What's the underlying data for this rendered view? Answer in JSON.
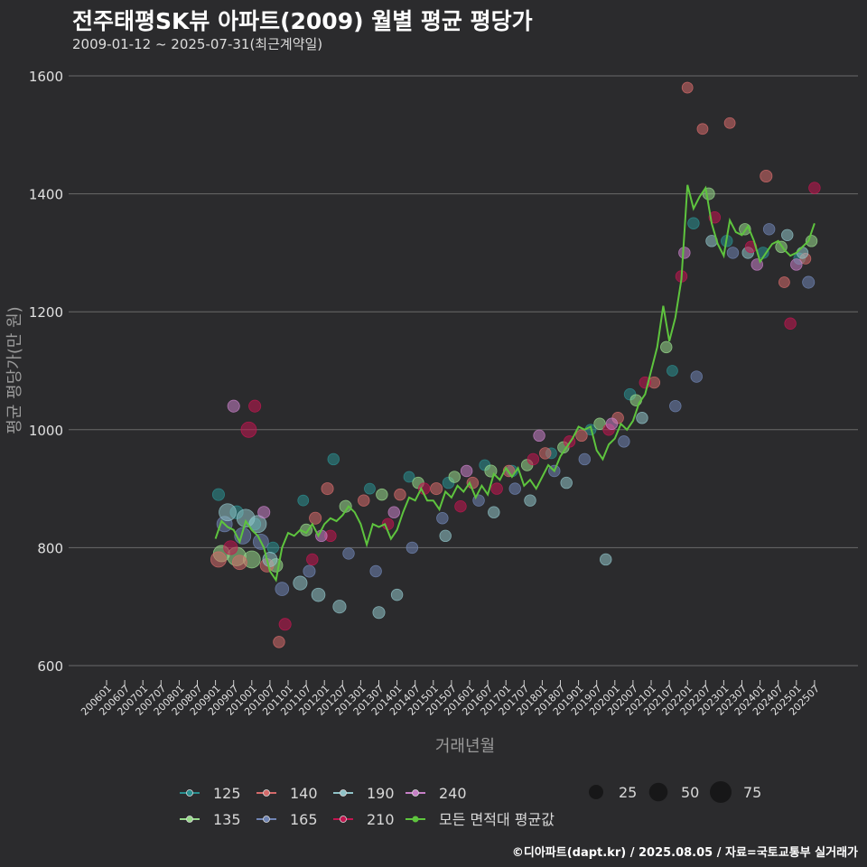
{
  "title": "전주태평SK뷰 아파트(2009) 월별 평균 평당가",
  "subtitle": "2009-01-12 ~ 2025-07-31(최근계약일)",
  "credit": "©디아파트(dapt.kr) / 2025.08.05 / 자료=국토교통부 실거래가",
  "colors": {
    "background": "#2b2b2d",
    "grid": "#6a6a6a",
    "area_125": "#2a8f90",
    "area_135": "#97d98b",
    "area_140": "#d46a6a",
    "area_165": "#6f84b3",
    "area_190": "#8fc2c7",
    "area_210": "#c21650",
    "area_240": "#c77fc7",
    "avg_line": "#5ec43e"
  },
  "chart_data": {
    "type": "scatter",
    "xlabel": "거래년월",
    "ylabel": "평균 평당가(만 원)",
    "ylim": [
      600,
      1600
    ],
    "yticks": [
      600,
      800,
      1000,
      1200,
      1400,
      1600
    ],
    "xticks": [
      "200601",
      "200607",
      "200701",
      "200707",
      "200801",
      "200807",
      "200901",
      "200907",
      "201001",
      "201007",
      "201101",
      "201107",
      "201201",
      "201207",
      "201301",
      "201307",
      "201401",
      "201407",
      "201501",
      "201507",
      "201601",
      "201607",
      "201701",
      "201707",
      "201801",
      "201807",
      "201901",
      "201907",
      "202001",
      "202007",
      "202101",
      "202107",
      "202201",
      "202207",
      "202301",
      "202307",
      "202401",
      "202407",
      "202501",
      "202507"
    ],
    "grid": true,
    "legend_position": "bottom",
    "legend_areas": [
      "125",
      "135",
      "140",
      "165",
      "190",
      "210",
      "240"
    ],
    "legend_avg_label": "모든 면적대 평균값",
    "legend_sizes": [
      25,
      50,
      75
    ],
    "average_line": {
      "name": "모든 면적대 평균값",
      "points": [
        [
          "2009-01",
          815
        ],
        [
          "2009-03",
          845
        ],
        [
          "2009-05",
          835
        ],
        [
          "2009-07",
          830
        ],
        [
          "2009-09",
          810
        ],
        [
          "2009-11",
          845
        ],
        [
          "2010-01",
          830
        ],
        [
          "2010-03",
          820
        ],
        [
          "2010-05",
          800
        ],
        [
          "2010-07",
          760
        ],
        [
          "2010-09",
          745
        ],
        [
          "2010-11",
          800
        ],
        [
          "2011-01",
          825
        ],
        [
          "2011-03",
          820
        ],
        [
          "2011-05",
          830
        ],
        [
          "2011-07",
          825
        ],
        [
          "2011-09",
          840
        ],
        [
          "2011-11",
          820
        ],
        [
          "2012-01",
          840
        ],
        [
          "2012-03",
          850
        ],
        [
          "2012-05",
          845
        ],
        [
          "2012-07",
          855
        ],
        [
          "2012-09",
          870
        ],
        [
          "2012-11",
          860
        ],
        [
          "2013-01",
          840
        ],
        [
          "2013-03",
          805
        ],
        [
          "2013-05",
          840
        ],
        [
          "2013-07",
          835
        ],
        [
          "2013-09",
          840
        ],
        [
          "2013-11",
          815
        ],
        [
          "2014-01",
          830
        ],
        [
          "2014-03",
          860
        ],
        [
          "2014-05",
          885
        ],
        [
          "2014-07",
          880
        ],
        [
          "2014-09",
          900
        ],
        [
          "2014-11",
          880
        ],
        [
          "2015-01",
          880
        ],
        [
          "2015-03",
          865
        ],
        [
          "2015-05",
          895
        ],
        [
          "2015-07",
          885
        ],
        [
          "2015-09",
          905
        ],
        [
          "2015-11",
          895
        ],
        [
          "2016-01",
          910
        ],
        [
          "2016-03",
          885
        ],
        [
          "2016-05",
          905
        ],
        [
          "2016-07",
          890
        ],
        [
          "2016-09",
          925
        ],
        [
          "2016-11",
          915
        ],
        [
          "2017-01",
          935
        ],
        [
          "2017-03",
          920
        ],
        [
          "2017-05",
          935
        ],
        [
          "2017-07",
          905
        ],
        [
          "2017-09",
          915
        ],
        [
          "2017-11",
          900
        ],
        [
          "2018-01",
          920
        ],
        [
          "2018-03",
          940
        ],
        [
          "2018-05",
          930
        ],
        [
          "2018-07",
          955
        ],
        [
          "2018-09",
          970
        ],
        [
          "2018-11",
          985
        ],
        [
          "2019-01",
          1005
        ],
        [
          "2019-03",
          1000
        ],
        [
          "2019-05",
          1005
        ],
        [
          "2019-07",
          965
        ],
        [
          "2019-09",
          950
        ],
        [
          "2019-11",
          975
        ],
        [
          "2020-01",
          985
        ],
        [
          "2020-03",
          1010
        ],
        [
          "2020-05",
          1000
        ],
        [
          "2020-07",
          1015
        ],
        [
          "2020-09",
          1045
        ],
        [
          "2020-11",
          1060
        ],
        [
          "2021-01",
          1100
        ],
        [
          "2021-03",
          1140
        ],
        [
          "2021-05",
          1210
        ],
        [
          "2021-07",
          1150
        ],
        [
          "2021-09",
          1190
        ],
        [
          "2021-11",
          1255
        ],
        [
          "2022-01",
          1415
        ],
        [
          "2022-03",
          1375
        ],
        [
          "2022-05",
          1395
        ],
        [
          "2022-07",
          1410
        ],
        [
          "2022-09",
          1350
        ],
        [
          "2022-11",
          1315
        ],
        [
          "2023-01",
          1295
        ],
        [
          "2023-03",
          1355
        ],
        [
          "2023-05",
          1335
        ],
        [
          "2023-07",
          1330
        ],
        [
          "2023-09",
          1345
        ],
        [
          "2023-11",
          1320
        ],
        [
          "2024-01",
          1285
        ],
        [
          "2024-03",
          1300
        ],
        [
          "2024-05",
          1315
        ],
        [
          "2024-07",
          1320
        ],
        [
          "2024-09",
          1305
        ],
        [
          "2024-11",
          1295
        ],
        [
          "2025-01",
          1300
        ],
        [
          "2025-03",
          1310
        ],
        [
          "2025-05",
          1320
        ],
        [
          "2025-07",
          1350
        ]
      ]
    },
    "series": [
      {
        "name": "125",
        "points": [
          [
            "2009-02",
            890,
            14
          ],
          [
            "2009-08",
            860,
            18
          ],
          [
            "2010-02",
            840,
            14
          ],
          [
            "2010-08",
            800,
            12
          ],
          [
            "2011-06",
            880,
            10
          ],
          [
            "2012-04",
            950,
            12
          ],
          [
            "2013-04",
            900,
            10
          ],
          [
            "2014-05",
            920,
            10
          ],
          [
            "2015-06",
            910,
            12
          ],
          [
            "2016-06",
            940,
            10
          ],
          [
            "2017-03",
            930,
            12
          ],
          [
            "2018-04",
            960,
            10
          ],
          [
            "2019-05",
            1000,
            10
          ],
          [
            "2020-06",
            1060,
            12
          ],
          [
            "2021-08",
            1100,
            10
          ],
          [
            "2022-03",
            1350,
            12
          ],
          [
            "2023-02",
            1320,
            12
          ],
          [
            "2024-02",
            1300,
            12
          ],
          [
            "2025-02",
            1290,
            12
          ]
        ]
      },
      {
        "name": "135",
        "points": [
          [
            "2009-03",
            790,
            35
          ],
          [
            "2009-08",
            785,
            50
          ],
          [
            "2010-01",
            780,
            40
          ],
          [
            "2010-09",
            770,
            20
          ],
          [
            "2011-07",
            830,
            14
          ],
          [
            "2012-08",
            870,
            14
          ],
          [
            "2013-08",
            890,
            12
          ],
          [
            "2014-08",
            910,
            12
          ],
          [
            "2015-08",
            920,
            12
          ],
          [
            "2016-08",
            930,
            14
          ],
          [
            "2017-08",
            940,
            12
          ],
          [
            "2018-08",
            970,
            12
          ],
          [
            "2019-08",
            1010,
            12
          ],
          [
            "2020-08",
            1050,
            12
          ],
          [
            "2021-06",
            1140,
            12
          ],
          [
            "2022-08",
            1400,
            14
          ],
          [
            "2023-08",
            1340,
            12
          ],
          [
            "2024-08",
            1310,
            12
          ],
          [
            "2025-06",
            1320,
            12
          ]
        ]
      },
      {
        "name": "140",
        "points": [
          [
            "2009-02",
            780,
            30
          ],
          [
            "2009-09",
            775,
            25
          ],
          [
            "2010-06",
            770,
            20
          ],
          [
            "2010-10",
            640,
            12
          ],
          [
            "2011-10",
            850,
            14
          ],
          [
            "2012-02",
            900,
            14
          ],
          [
            "2013-02",
            880,
            12
          ],
          [
            "2014-02",
            890,
            12
          ],
          [
            "2015-02",
            900,
            14
          ],
          [
            "2016-02",
            910,
            12
          ],
          [
            "2017-02",
            930,
            12
          ],
          [
            "2018-02",
            960,
            12
          ],
          [
            "2019-02",
            990,
            12
          ],
          [
            "2020-02",
            1020,
            12
          ],
          [
            "2021-02",
            1080,
            12
          ],
          [
            "2022-01",
            1580,
            10
          ],
          [
            "2022-06",
            1510,
            10
          ],
          [
            "2023-03",
            1520,
            10
          ],
          [
            "2024-03",
            1430,
            14
          ],
          [
            "2024-09",
            1250,
            10
          ],
          [
            "2025-04",
            1290,
            10
          ]
        ]
      },
      {
        "name": "165",
        "points": [
          [
            "2009-04",
            840,
            30
          ],
          [
            "2009-10",
            820,
            35
          ],
          [
            "2010-04",
            810,
            30
          ],
          [
            "2010-11",
            730,
            20
          ],
          [
            "2011-08",
            760,
            14
          ],
          [
            "2012-09",
            790,
            12
          ],
          [
            "2013-06",
            760,
            12
          ],
          [
            "2014-06",
            800,
            12
          ],
          [
            "2015-04",
            850,
            12
          ],
          [
            "2016-04",
            880,
            12
          ],
          [
            "2017-04",
            900,
            12
          ],
          [
            "2018-05",
            930,
            12
          ],
          [
            "2019-03",
            950,
            12
          ],
          [
            "2020-04",
            980,
            12
          ],
          [
            "2021-09",
            1040,
            12
          ],
          [
            "2022-04",
            1090,
            12
          ],
          [
            "2023-04",
            1300,
            12
          ],
          [
            "2024-04",
            1340,
            12
          ],
          [
            "2025-05",
            1250,
            14
          ]
        ]
      },
      {
        "name": "190",
        "points": [
          [
            "2009-05",
            860,
            40
          ],
          [
            "2009-11",
            850,
            45
          ],
          [
            "2010-03",
            840,
            40
          ],
          [
            "2010-07",
            780,
            25
          ],
          [
            "2011-05",
            740,
            22
          ],
          [
            "2011-11",
            720,
            20
          ],
          [
            "2012-06",
            700,
            18
          ],
          [
            "2013-07",
            690,
            14
          ],
          [
            "2014-01",
            720,
            12
          ],
          [
            "2015-05",
            820,
            12
          ],
          [
            "2016-09",
            860,
            12
          ],
          [
            "2017-09",
            880,
            12
          ],
          [
            "2018-09",
            910,
            12
          ],
          [
            "2019-10",
            780,
            12
          ],
          [
            "2020-10",
            1020,
            12
          ],
          [
            "2022-09",
            1320,
            12
          ],
          [
            "2023-09",
            1300,
            12
          ],
          [
            "2024-10",
            1330,
            12
          ],
          [
            "2025-03",
            1300,
            12
          ]
        ]
      },
      {
        "name": "210",
        "points": [
          [
            "2009-06",
            800,
            22
          ],
          [
            "2009-12",
            1000,
            30
          ],
          [
            "2010-02",
            1040,
            14
          ],
          [
            "2010-12",
            670,
            14
          ],
          [
            "2011-09",
            780,
            12
          ],
          [
            "2012-03",
            820,
            12
          ],
          [
            "2013-10",
            840,
            12
          ],
          [
            "2014-10",
            900,
            12
          ],
          [
            "2015-10",
            870,
            12
          ],
          [
            "2016-10",
            900,
            12
          ],
          [
            "2017-10",
            950,
            12
          ],
          [
            "2018-10",
            980,
            12
          ],
          [
            "2019-11",
            1000,
            12
          ],
          [
            "2020-11",
            1080,
            12
          ],
          [
            "2021-11",
            1260,
            12
          ],
          [
            "2022-10",
            1360,
            12
          ],
          [
            "2023-10",
            1310,
            12
          ],
          [
            "2024-11",
            1180,
            12
          ],
          [
            "2025-07",
            1410,
            12
          ]
        ]
      },
      {
        "name": "240",
        "points": [
          [
            "2009-07",
            1040,
            14
          ],
          [
            "2010-05",
            860,
            14
          ],
          [
            "2011-12",
            820,
            12
          ],
          [
            "2013-12",
            860,
            12
          ],
          [
            "2015-12",
            930,
            12
          ],
          [
            "2017-12",
            990,
            12
          ],
          [
            "2019-12",
            1010,
            12
          ],
          [
            "2021-12",
            1300,
            12
          ],
          [
            "2023-12",
            1280,
            12
          ],
          [
            "2025-01",
            1280,
            12
          ]
        ]
      }
    ]
  }
}
